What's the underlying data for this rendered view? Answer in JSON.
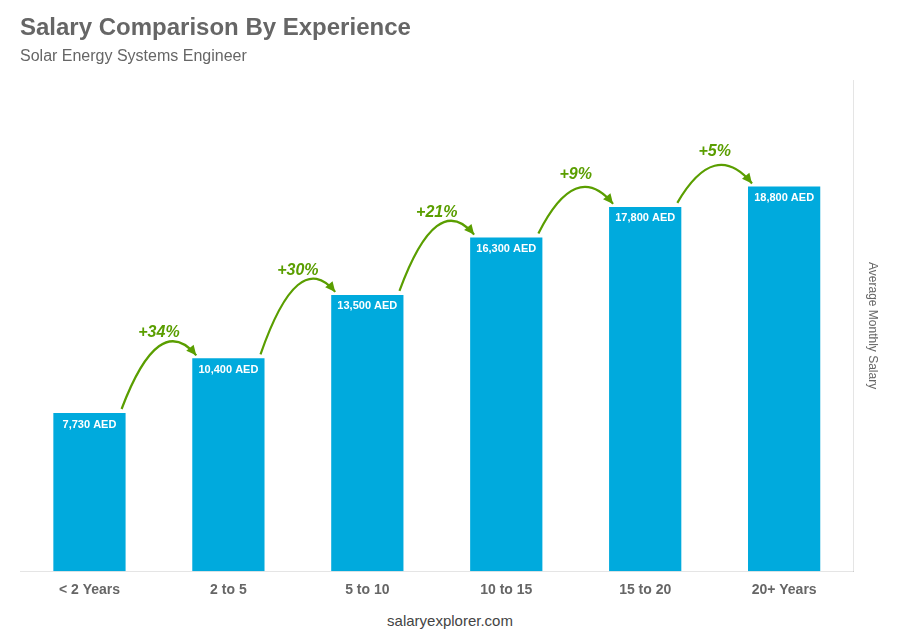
{
  "chart_data": {
    "type": "bar",
    "title": "Salary Comparison By Experience",
    "subtitle": "Solar Energy Systems Engineer",
    "categories": [
      "< 2 Years",
      "2 to 5",
      "5 to 10",
      "10 to 15",
      "15 to 20",
      "20+ Years"
    ],
    "values": [
      7730,
      10400,
      13500,
      16300,
      17800,
      18800
    ],
    "value_labels": [
      "7,730 AED",
      "10,400 AED",
      "13,500 AED",
      "16,300 AED",
      "17,800 AED",
      "18,800 AED"
    ],
    "data_labels": true,
    "color": "#00aadd",
    "ylabel": "Average Monthly Salary",
    "ylim": [
      0,
      24000
    ],
    "grid": false,
    "tick_labels": "x",
    "annotations": [
      "+34%",
      "+30%",
      "+21%",
      "+9%",
      "+5%"
    ],
    "footer": "salaryexplorer.com"
  }
}
